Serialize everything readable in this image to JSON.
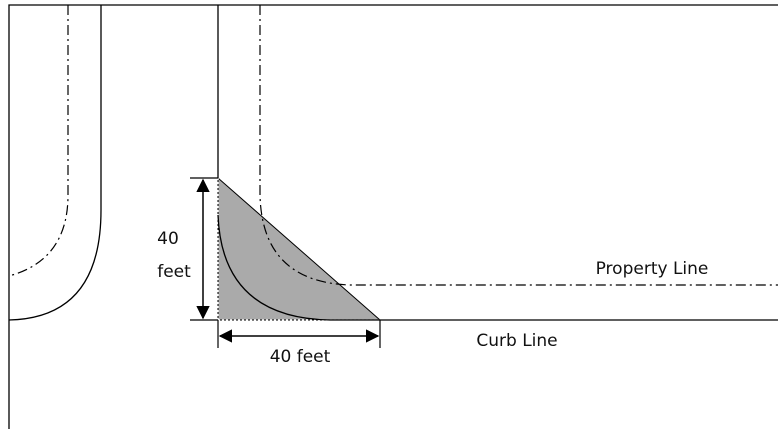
{
  "dimensions": {
    "vertical": {
      "number": "40",
      "unit": "feet"
    },
    "horizontal": "40 feet"
  },
  "lines": {
    "property": "Property Line",
    "curb": "Curb Line"
  }
}
